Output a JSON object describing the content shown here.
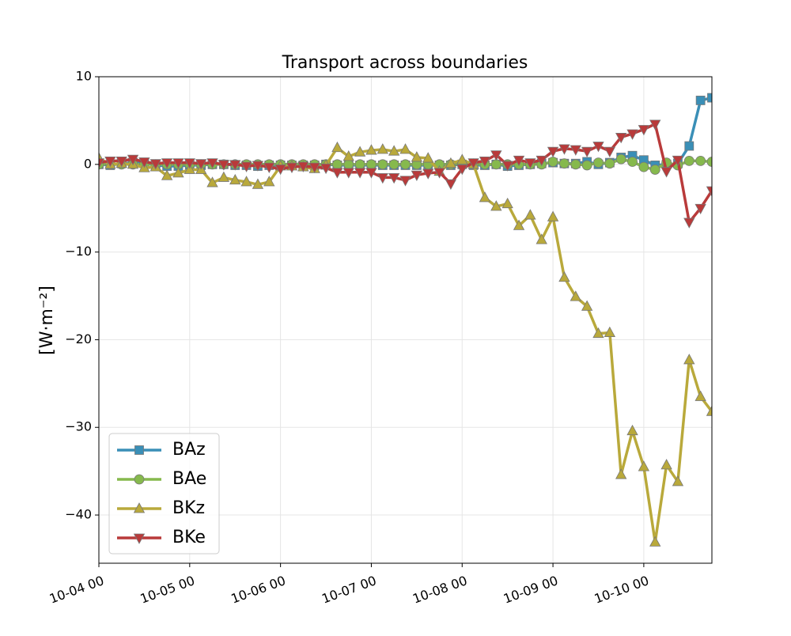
{
  "chart_data": {
    "type": "line",
    "title": "Transport across boundaries",
    "ylabel": "[W·m⁻²]",
    "x": [
      "10-04 00",
      "10-04 03",
      "10-04 06",
      "10-04 09",
      "10-04 12",
      "10-04 15",
      "10-04 18",
      "10-04 21",
      "10-05 00",
      "10-05 03",
      "10-05 06",
      "10-05 09",
      "10-05 12",
      "10-05 15",
      "10-05 18",
      "10-05 21",
      "10-06 00",
      "10-06 03",
      "10-06 06",
      "10-06 09",
      "10-06 12",
      "10-06 15",
      "10-06 18",
      "10-06 21",
      "10-07 00",
      "10-07 03",
      "10-07 06",
      "10-07 09",
      "10-07 12",
      "10-07 15",
      "10-07 18",
      "10-07 21",
      "10-08 00",
      "10-08 03",
      "10-08 06",
      "10-08 09",
      "10-08 12",
      "10-08 15",
      "10-08 18",
      "10-08 21",
      "10-09 00",
      "10-09 03",
      "10-09 06",
      "10-09 09",
      "10-09 12",
      "10-09 15",
      "10-09 18",
      "10-09 21",
      "10-10 00",
      "10-10 03",
      "10-10 06",
      "10-10 09",
      "10-10 12",
      "10-10 15",
      "10-10 18"
    ],
    "xlim": [
      "10-04 00",
      "10-10 18"
    ],
    "xticks": [
      "10-04 00",
      "10-05 00",
      "10-06 00",
      "10-07 00",
      "10-08 00",
      "10-09 00",
      "10-10 00"
    ],
    "ylim": [
      -45.5,
      10
    ],
    "yticks": [
      10,
      0,
      {
        "value": -10,
        "label": "−10"
      },
      {
        "value": -20,
        "label": "−20"
      },
      {
        "value": -30,
        "label": "−30"
      },
      {
        "value": -40,
        "label": "−40"
      }
    ],
    "grid": true,
    "legend": "lower left",
    "series": [
      {
        "name": "BAz",
        "color": "#3a8fb7",
        "marker": "square",
        "values": [
          0,
          -0.1,
          0.1,
          0.2,
          0.1,
          -0.1,
          -0.2,
          -0.2,
          -0.1,
          -0.1,
          0,
          0,
          -0.1,
          -0.1,
          -0.2,
          -0.1,
          -0.1,
          -0.1,
          -0.1,
          -0.1,
          0,
          -0.1,
          -0.1,
          -0.1,
          -0.1,
          -0.1,
          -0.1,
          -0.1,
          -0.1,
          -0.1,
          -0.1,
          -0.1,
          0,
          -0.1,
          -0.1,
          0,
          -0.2,
          -0.1,
          0,
          0.1,
          0.2,
          0.1,
          0.1,
          0.3,
          0,
          0.2,
          0.8,
          1.0,
          0.5,
          -0.1,
          0,
          0.1,
          2.1,
          7.3,
          7.6
        ]
      },
      {
        "name": "BAe",
        "color": "#86b94d",
        "marker": "circle",
        "values": [
          0,
          0,
          0,
          0,
          0,
          0,
          0,
          0,
          0,
          0,
          0,
          0,
          0,
          0,
          0,
          0,
          0,
          0,
          0,
          0,
          0,
          0,
          0,
          0,
          0,
          0,
          0,
          0,
          0,
          0,
          0,
          0,
          0,
          0,
          0,
          0,
          0,
          0,
          0,
          0,
          0.3,
          0.1,
          0,
          -0.1,
          0.2,
          0.1,
          0.6,
          0.3,
          -0.3,
          -0.6,
          0.2,
          -0.1,
          0.4,
          0.4,
          0.3
        ]
      },
      {
        "name": "BKz",
        "color": "#b9a93b",
        "marker": "triangle-up",
        "values": [
          0.7,
          0,
          0.1,
          0,
          -0.4,
          -0.3,
          -1.3,
          -1.0,
          -0.6,
          -0.6,
          -2.1,
          -1.5,
          -1.8,
          -2.0,
          -2.3,
          -2.0,
          -0.2,
          -0.2,
          -0.3,
          -0.5,
          -0.1,
          1.9,
          0.9,
          1.4,
          1.6,
          1.7,
          1.5,
          1.7,
          0.8,
          0.7,
          -0.8,
          0.1,
          0.5,
          0,
          -3.8,
          -4.8,
          -4.5,
          -7.0,
          -5.8,
          -8.6,
          -6.0,
          -12.9,
          -15.1,
          -16.2,
          -19.3,
          -19.2,
          -35.4,
          -30.4,
          -34.5,
          -43.1,
          -34.3,
          -36.2,
          -22.3,
          -26.5,
          -28.2
        ]
      },
      {
        "name": "BKe",
        "color": "#b93a3a",
        "marker": "triangle-down",
        "values": [
          0.2,
          0.4,
          0.4,
          0.6,
          0.3,
          0.1,
          0.2,
          0.2,
          0.2,
          0.1,
          0.2,
          0,
          0,
          -0.2,
          -0.1,
          -0.3,
          -0.5,
          -0.3,
          -0.2,
          -0.3,
          -0.4,
          -0.9,
          -0.9,
          -0.9,
          -0.9,
          -1.5,
          -1.5,
          -1.8,
          -1.2,
          -1.0,
          -0.9,
          -2.2,
          -0.5,
          0.2,
          0.4,
          1.1,
          -0.1,
          0.5,
          0.2,
          0.5,
          1.5,
          1.8,
          1.7,
          1.5,
          2.1,
          1.5,
          3.1,
          3.5,
          4.0,
          4.6,
          -0.8,
          0.5,
          -6.6,
          -5.0,
          -3.0
        ]
      }
    ]
  }
}
